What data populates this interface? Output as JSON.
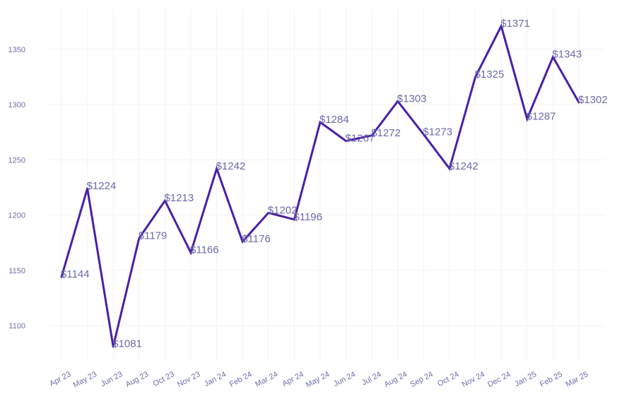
{
  "chart_data": {
    "type": "line",
    "title": "",
    "xlabel": "",
    "ylabel": "",
    "categories": [
      "Apr 23",
      "May 23",
      "Jun 23",
      "Aug 23",
      "Oct 23",
      "Nov 23",
      "Jan 24",
      "Feb 24",
      "Mar 24",
      "Apr 24",
      "May 24",
      "Jun 24",
      "Jul 24",
      "Aug 24",
      "Sep 24",
      "Oct 24",
      "Nov 24",
      "Dec 24",
      "Jan 25",
      "Feb 25",
      "Mar 25"
    ],
    "series": [
      {
        "values": [
          1144,
          1224,
          1081,
          1179,
          1213,
          1166,
          1242,
          1176,
          1202,
          1196,
          1284,
          1267,
          1272,
          1303,
          1273,
          1242,
          1325,
          1371,
          1287,
          1343,
          1302
        ],
        "labels": [
          "$1144",
          "$1224",
          "$1081",
          "$1179",
          "$1213",
          "$1166",
          "$1242",
          "$1176",
          "$1202",
          "$1196",
          "$1284",
          "$1267",
          "$1272",
          "$1303",
          "$1273",
          "$1242",
          "$1325",
          "$1371",
          "$1287",
          "$1343",
          "$1302"
        ],
        "color": "#4a1fa8"
      }
    ],
    "yticks": [
      1100,
      1150,
      1200,
      1250,
      1300,
      1350
    ],
    "ylim": [
      1070,
      1388
    ],
    "grid": true,
    "legend": "none"
  }
}
